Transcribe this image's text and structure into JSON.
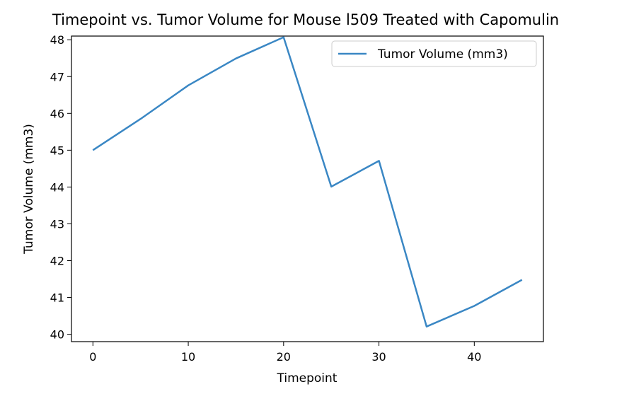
{
  "chart_data": {
    "type": "line",
    "title": "Timepoint vs. Tumor Volume for Mouse l509 Treated with Capomulin",
    "xlabel": "Timepoint",
    "ylabel": "Tumor Volume (mm3)",
    "x": [
      0,
      5,
      10,
      15,
      20,
      25,
      30,
      35,
      40,
      45
    ],
    "series": [
      {
        "name": "Tumor Volume (mm3)",
        "values": [
          45.0,
          45.85,
          46.76,
          47.49,
          48.07,
          44.01,
          44.71,
          40.21,
          40.77,
          41.48
        ]
      }
    ],
    "xlim": [
      -2.25,
      47.25
    ],
    "ylim": [
      39.8,
      48.1
    ],
    "xticks": [
      0,
      10,
      20,
      30,
      40
    ],
    "yticks": [
      40,
      41,
      42,
      43,
      44,
      45,
      46,
      47,
      48
    ],
    "line_color": "#3a87c4",
    "grid": false,
    "legend_position": "upper right"
  }
}
